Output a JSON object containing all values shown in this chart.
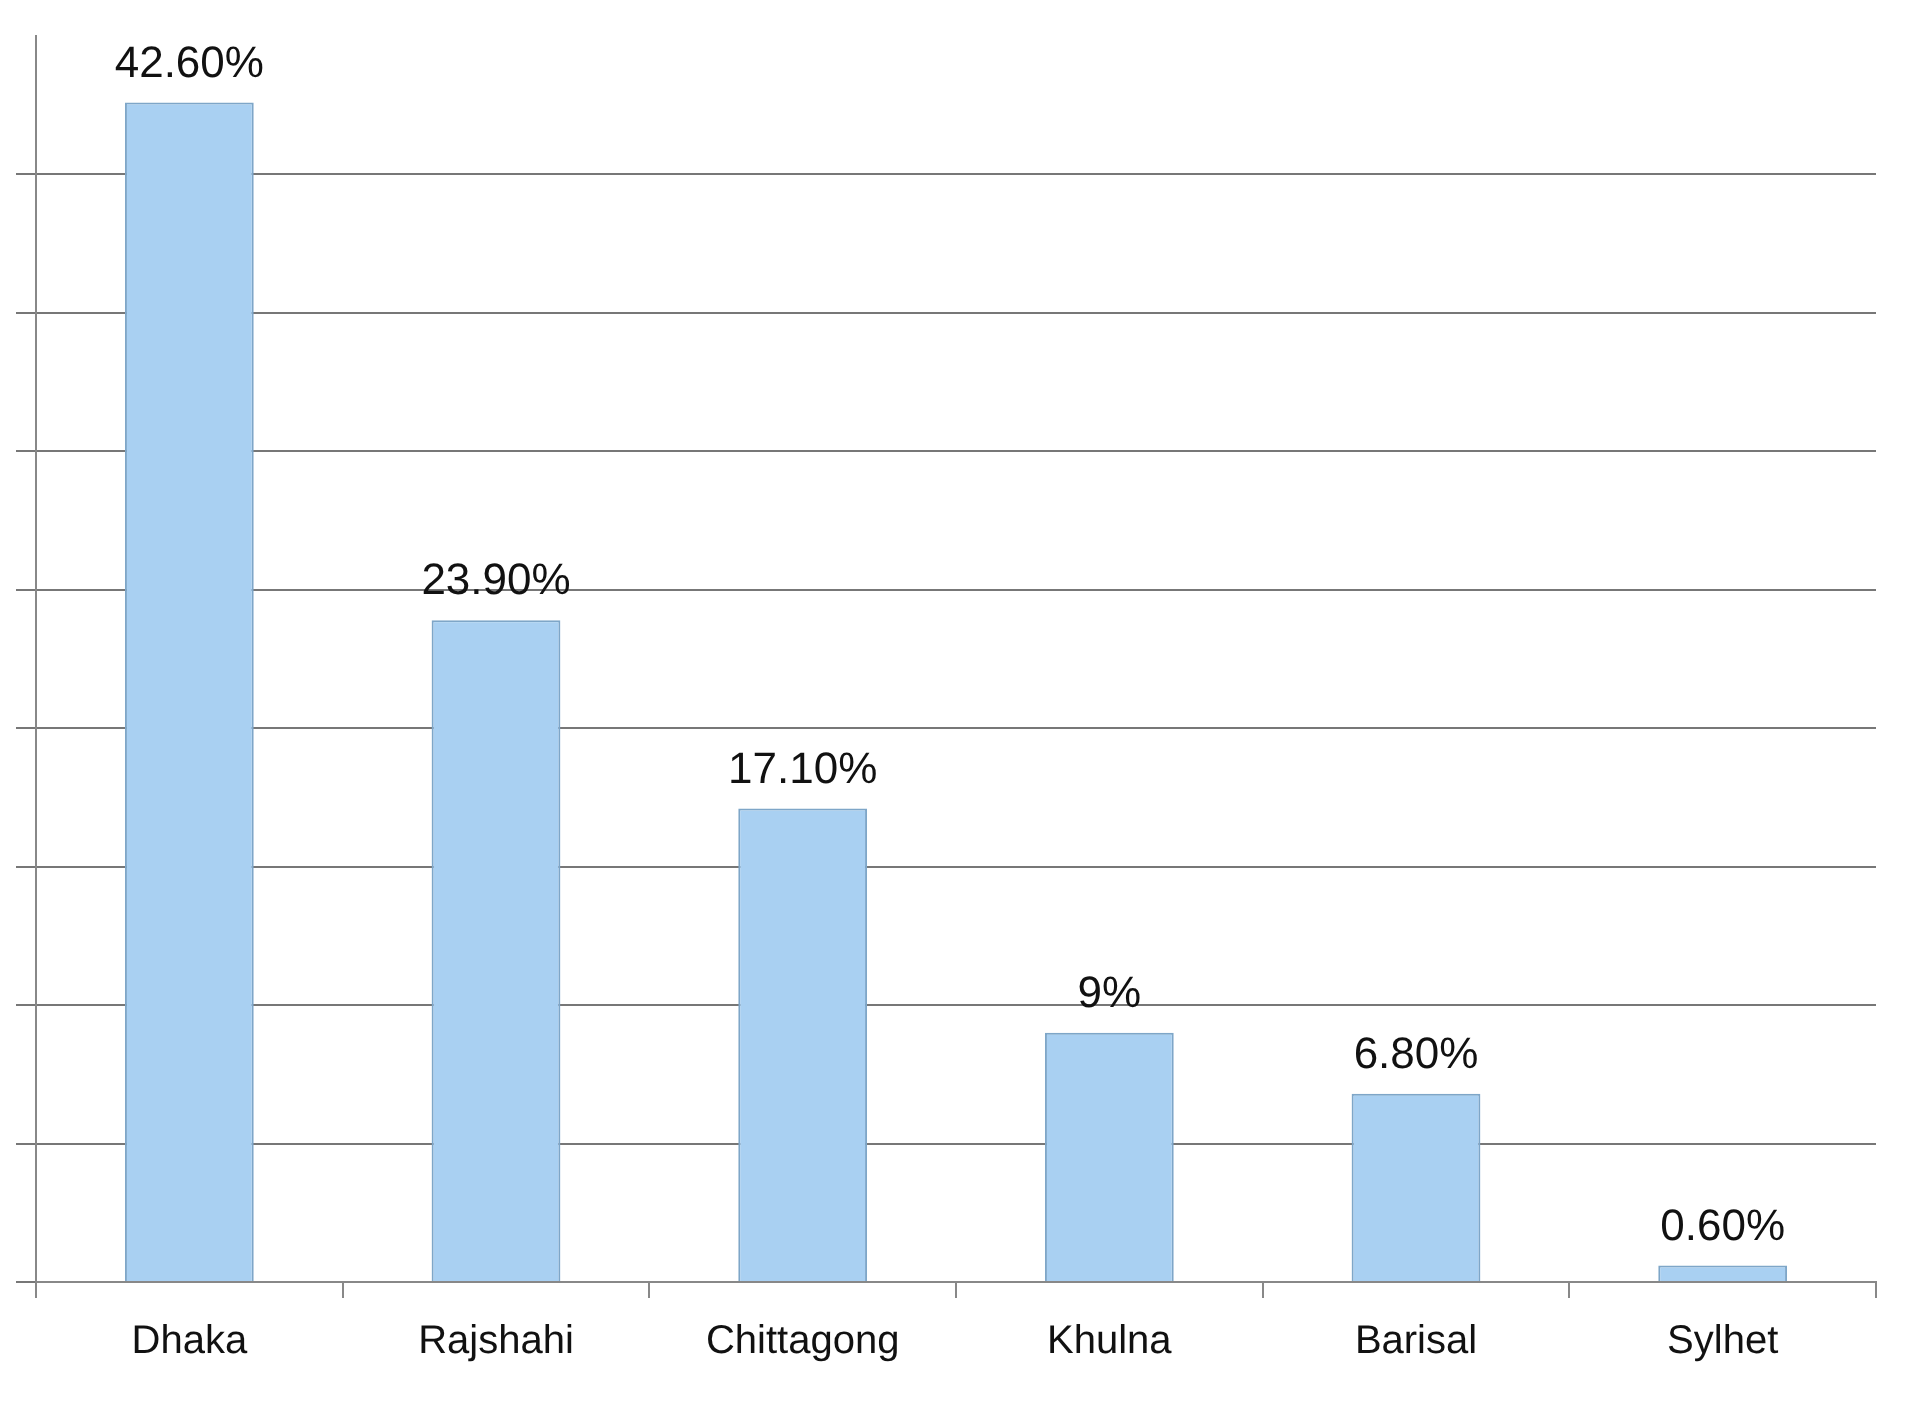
{
  "chart_data": {
    "type": "bar",
    "categories": [
      "Dhaka",
      "Rajshahi",
      "Chittagong",
      "Khulna",
      "Barisal",
      "Sylhet"
    ],
    "values": [
      42.6,
      23.9,
      17.1,
      9,
      6.8,
      0.6
    ],
    "value_labels": [
      "42.60%",
      "23.90%",
      "17.10%",
      "9%",
      "6.80%",
      "0.60%"
    ],
    "color": "#a9d0f2",
    "ylim": [
      0,
      45
    ],
    "yticks": [
      {
        "value": 0,
        "label": null
      },
      {
        "value": 5,
        "label": null
      },
      {
        "value": 10,
        "label": null
      },
      {
        "value": 15,
        "label": null
      },
      {
        "value": 20,
        "label": null
      },
      {
        "value": 25,
        "label": null
      },
      {
        "value": 30,
        "label": null
      },
      {
        "value": 35,
        "label": null
      },
      {
        "value": 40,
        "label": null
      }
    ],
    "grid": "y",
    "tick_labels": "x"
  }
}
